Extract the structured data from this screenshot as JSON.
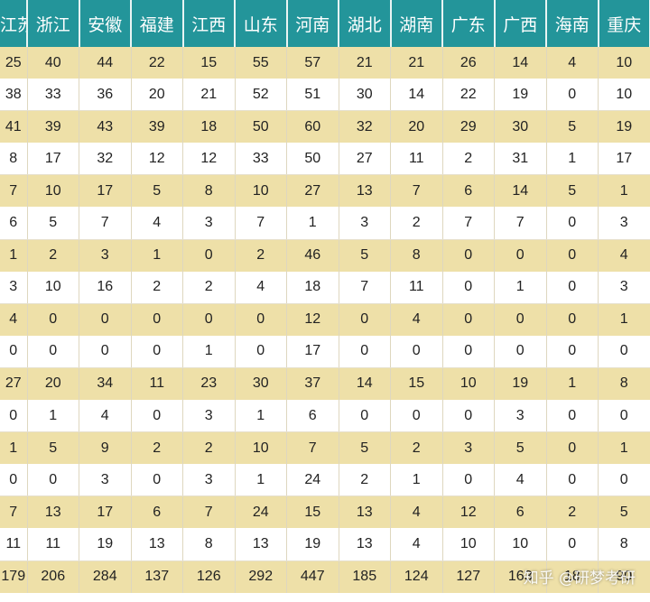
{
  "header": [
    "江苏",
    "浙江",
    "安徽",
    "福建",
    "江西",
    "山东",
    "河南",
    "湖北",
    "湖南",
    "广东",
    "广西",
    "海南",
    "重庆"
  ],
  "rows": [
    [
      "25",
      "40",
      "44",
      "22",
      "15",
      "55",
      "57",
      "21",
      "21",
      "26",
      "14",
      "4",
      "10"
    ],
    [
      "38",
      "33",
      "36",
      "20",
      "21",
      "52",
      "51",
      "30",
      "14",
      "22",
      "19",
      "0",
      "10"
    ],
    [
      "41",
      "39",
      "43",
      "39",
      "18",
      "50",
      "60",
      "32",
      "20",
      "29",
      "30",
      "5",
      "19"
    ],
    [
      "8",
      "17",
      "32",
      "12",
      "12",
      "33",
      "50",
      "27",
      "11",
      "2",
      "31",
      "1",
      "17"
    ],
    [
      "7",
      "10",
      "17",
      "5",
      "8",
      "10",
      "27",
      "13",
      "7",
      "6",
      "14",
      "5",
      "1"
    ],
    [
      "6",
      "5",
      "7",
      "4",
      "3",
      "7",
      "1",
      "3",
      "2",
      "7",
      "7",
      "0",
      "3"
    ],
    [
      "1",
      "2",
      "3",
      "1",
      "0",
      "2",
      "46",
      "5",
      "8",
      "0",
      "0",
      "0",
      "4"
    ],
    [
      "3",
      "10",
      "16",
      "2",
      "2",
      "4",
      "18",
      "7",
      "11",
      "0",
      "1",
      "0",
      "3"
    ],
    [
      "4",
      "0",
      "0",
      "0",
      "0",
      "0",
      "12",
      "0",
      "4",
      "0",
      "0",
      "0",
      "1"
    ],
    [
      "0",
      "0",
      "0",
      "0",
      "1",
      "0",
      "17",
      "0",
      "0",
      "0",
      "0",
      "0",
      "0"
    ],
    [
      "27",
      "20",
      "34",
      "11",
      "23",
      "30",
      "37",
      "14",
      "15",
      "10",
      "19",
      "1",
      "8"
    ],
    [
      "0",
      "1",
      "4",
      "0",
      "3",
      "1",
      "6",
      "0",
      "0",
      "0",
      "3",
      "0",
      "0"
    ],
    [
      "1",
      "5",
      "9",
      "2",
      "2",
      "10",
      "7",
      "5",
      "2",
      "3",
      "5",
      "0",
      "1"
    ],
    [
      "0",
      "0",
      "3",
      "0",
      "3",
      "1",
      "24",
      "2",
      "1",
      "0",
      "4",
      "0",
      "0"
    ],
    [
      "7",
      "13",
      "17",
      "6",
      "7",
      "24",
      "15",
      "13",
      "4",
      "12",
      "6",
      "2",
      "5"
    ],
    [
      "11",
      "11",
      "19",
      "13",
      "8",
      "13",
      "19",
      "13",
      "4",
      "10",
      "10",
      "0",
      "8"
    ],
    [
      "179",
      "206",
      "284",
      "137",
      "126",
      "292",
      "447",
      "185",
      "124",
      "127",
      "163",
      "18",
      "90"
    ]
  ],
  "watermark": "知乎 @研梦考研"
}
